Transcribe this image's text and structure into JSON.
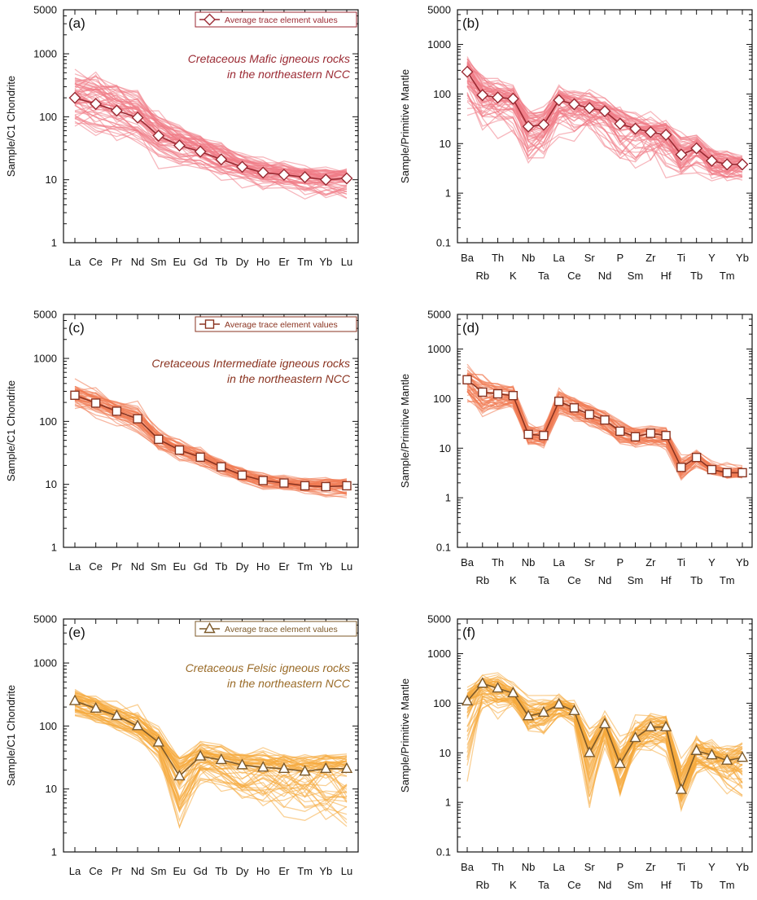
{
  "figure": {
    "chondrite_elements": [
      "La",
      "Ce",
      "Pr",
      "Nd",
      "Sm",
      "Eu",
      "Gd",
      "Tb",
      "Dy",
      "Ho",
      "Er",
      "Tm",
      "Yb",
      "Lu"
    ],
    "mantle_elements": [
      "Ba",
      "Rb",
      "Th",
      "K",
      "Nb",
      "Ta",
      "La",
      "Ce",
      "Sr",
      "Nd",
      "P",
      "Sm",
      "Zr",
      "Hf",
      "Ti",
      "Tb",
      "Y",
      "Tm",
      "Yb"
    ],
    "legend_label": "Average trace element values"
  },
  "chart_data": [
    {
      "panel": "(a)",
      "type": "line",
      "scale": "log",
      "ylim": [
        1,
        5000
      ],
      "yticks": [
        "1",
        "10",
        "100",
        "1000",
        "5000"
      ],
      "ylabel": "Sample/C1 Chondrite",
      "title_line1": "Cretaceous Mafic igneous rocks",
      "title_line2": "in the northeastern NCC",
      "legend": "Average trace element values",
      "marker": "diamond",
      "line_color": "#f07c86",
      "avg_color": "#9b2a33",
      "text_color": "#9b2a33",
      "series": [
        {
          "name": "Average trace element values",
          "values": [
            200,
            160,
            125,
            97,
            50,
            35,
            28,
            21,
            16,
            13,
            12,
            11,
            10,
            10.5
          ]
        }
      ],
      "sample_lines": {
        "count": 60,
        "lower": [
          28,
          25,
          20,
          18,
          12,
          10,
          9,
          7,
          6,
          5,
          4.5,
          4,
          3.5,
          3
        ],
        "upper": [
          1100,
          900,
          700,
          480,
          220,
          120,
          80,
          55,
          35,
          28,
          24,
          22,
          20,
          19
        ]
      }
    },
    {
      "panel": "(b)",
      "type": "line",
      "scale": "log",
      "ylim": [
        0.1,
        5000
      ],
      "yticks": [
        "0.1",
        "1",
        "10",
        "100",
        "1000",
        "5000"
      ],
      "ylabel": "Sample/Primitive Mantle",
      "marker": "diamond",
      "line_color": "#f07c86",
      "avg_color": "#9b2a33",
      "series": [
        {
          "name": "Average trace element values",
          "values": [
            280,
            95,
            85,
            80,
            22,
            24,
            75,
            62,
            52,
            45,
            25,
            20,
            17,
            15,
            6,
            8,
            4.5,
            3.8,
            3.8
          ]
        }
      ],
      "sample_lines": {
        "count": 60,
        "lower": [
          15,
          8,
          5,
          8,
          1.5,
          2,
          6,
          5,
          8,
          4,
          1,
          1.5,
          2,
          1.5,
          1,
          1.5,
          1.2,
          1,
          1
        ],
        "upper": [
          1100,
          500,
          280,
          200,
          90,
          90,
          200,
          170,
          180,
          110,
          80,
          55,
          60,
          45,
          25,
          22,
          12,
          9,
          8
        ]
      }
    },
    {
      "panel": "(c)",
      "type": "line",
      "scale": "log",
      "ylim": [
        1,
        5000
      ],
      "yticks": [
        "1",
        "10",
        "100",
        "1000",
        "5000"
      ],
      "ylabel": "Sample/C1 Chondrite",
      "title_line1": "Cretaceous Intermediate igneous rocks",
      "title_line2": "in the northeastern NCC",
      "legend": "Average trace element values",
      "marker": "square",
      "line_color": "#f07a52",
      "avg_color": "#8a3320",
      "text_color": "#8a3320",
      "series": [
        {
          "name": "Average trace element values",
          "values": [
            260,
            195,
            145,
            110,
            52,
            35,
            27,
            19,
            14,
            11.5,
            10.5,
            9.5,
            9.2,
            9.5
          ]
        }
      ],
      "sample_lines": {
        "count": 45,
        "lower": [
          110,
          85,
          65,
          55,
          28,
          20,
          16,
          12,
          9,
          7.5,
          7,
          6,
          5.5,
          5
        ],
        "upper": [
          650,
          480,
          350,
          250,
          110,
          70,
          48,
          30,
          22,
          18,
          17,
          16,
          16,
          16
        ]
      }
    },
    {
      "panel": "(d)",
      "type": "line",
      "scale": "log",
      "ylim": [
        0.1,
        5000
      ],
      "yticks": [
        "0.1",
        "1",
        "10",
        "100",
        "1000",
        "5000"
      ],
      "ylabel": "Sample/Primitive Mantle",
      "marker": "square",
      "line_color": "#f07a52",
      "avg_color": "#8a3320",
      "series": [
        {
          "name": "Average trace element values",
          "values": [
            240,
            135,
            125,
            115,
            19,
            18,
            88,
            65,
            48,
            37,
            22,
            17,
            20,
            18,
            4.1,
            6.5,
            3.7,
            3.2,
            3.2
          ]
        }
      ],
      "sample_lines": {
        "count": 45,
        "lower": [
          45,
          15,
          30,
          35,
          8,
          7,
          35,
          25,
          15,
          15,
          8,
          8,
          8,
          7,
          1.5,
          3,
          2.5,
          2,
          2
        ],
        "upper": [
          550,
          450,
          300,
          250,
          40,
          35,
          220,
          160,
          120,
          85,
          55,
          35,
          35,
          33,
          9,
          11,
          7,
          6,
          5.5
        ]
      }
    },
    {
      "panel": "(e)",
      "type": "line",
      "scale": "log",
      "ylim": [
        1,
        5000
      ],
      "yticks": [
        "1",
        "10",
        "100",
        "1000",
        "5000"
      ],
      "ylabel": "Sample/C1 Chondrite",
      "title_line1": "Cretaceous Felsic igneous rocks",
      "title_line2": "in the northeastern NCC",
      "legend": "Average trace element values",
      "marker": "triangle",
      "line_color": "#f5aa3c",
      "avg_color": "#7d5a2a",
      "text_color": "#9a6b28",
      "series": [
        {
          "name": "Average trace element values",
          "values": [
            250,
            190,
            145,
            100,
            55,
            16,
            33,
            29,
            24,
            22,
            21,
            19,
            21,
            21
          ]
        }
      ],
      "sample_lines": {
        "count": 55,
        "lower": [
          110,
          85,
          60,
          45,
          20,
          0.8,
          7,
          5,
          3.5,
          2.5,
          1.8,
          1.4,
          1.2,
          1.1
        ],
        "upper": [
          550,
          420,
          320,
          250,
          130,
          60,
          75,
          70,
          65,
          65,
          62,
          60,
          62,
          60
        ]
      }
    },
    {
      "panel": "(f)",
      "type": "line",
      "scale": "log",
      "ylim": [
        0.1,
        5000
      ],
      "yticks": [
        "0.1",
        "1",
        "10",
        "100",
        "1000",
        "5000"
      ],
      "ylabel": "Sample/Primitive Mantle",
      "marker": "triangle",
      "line_color": "#f5aa3c",
      "avg_color": "#7d5a2a",
      "series": [
        {
          "name": "Average trace element values",
          "values": [
            110,
            250,
            200,
            160,
            55,
            65,
            95,
            70,
            10,
            38,
            6,
            20,
            33,
            33,
            1.8,
            11,
            9,
            7,
            8
          ]
        }
      ],
      "sample_lines": {
        "count": 55,
        "lower": [
          0.25,
          30,
          25,
          50,
          15,
          15,
          30,
          25,
          0.25,
          8,
          0.4,
          6,
          5,
          5,
          0.5,
          2,
          1.5,
          0.6,
          0.4
        ],
        "upper": [
          300,
          550,
          850,
          400,
          350,
          250,
          200,
          200,
          60,
          90,
          40,
          150,
          120,
          120,
          28,
          45,
          40,
          30,
          30
        ]
      }
    }
  ]
}
